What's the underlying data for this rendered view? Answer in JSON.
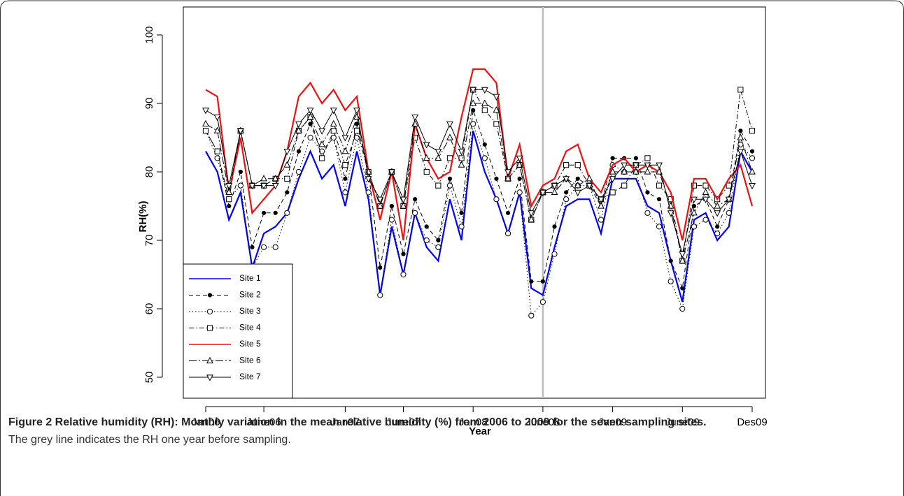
{
  "chart_data": {
    "type": "line",
    "ylabel": "RH(%)",
    "xlabel": "Year",
    "categories": [
      "Jan06",
      null,
      null,
      null,
      null,
      "June06",
      null,
      null,
      null,
      null,
      null,
      null,
      "Jan07",
      null,
      null,
      null,
      null,
      "June07",
      null,
      null,
      null,
      null,
      null,
      "Jan08",
      null,
      null,
      null,
      null,
      null,
      "June08",
      null,
      null,
      null,
      null,
      null,
      "Jan09",
      null,
      null,
      null,
      null,
      null,
      "June09",
      null,
      null,
      null,
      null,
      null,
      "Des09"
    ],
    "ylim": [
      50,
      100
    ],
    "yticks": [
      50,
      60,
      70,
      80,
      90,
      100
    ],
    "reference_line": {
      "x": 29,
      "color": "#bdbdbd"
    },
    "legend": "bottom-left",
    "series": [
      {
        "name": "Site 1",
        "color": "#0000ff",
        "width": 2.2,
        "dash": "solid",
        "marker": "none",
        "values": [
          83,
          80,
          73,
          77,
          66,
          71,
          72,
          74,
          79,
          83,
          79,
          81,
          75,
          83,
          76,
          62,
          72,
          65,
          74,
          69,
          67,
          76,
          70,
          86,
          80,
          76,
          71,
          77,
          63,
          62,
          69,
          75,
          76,
          76,
          71,
          79,
          79,
          79,
          75,
          74,
          67,
          61,
          73,
          74,
          70,
          72,
          83,
          80
        ]
      },
      {
        "name": "Site 2",
        "color": "#000000",
        "width": 1,
        "dash": "dashed",
        "marker": "dot",
        "values": [
          86,
          83,
          75,
          80,
          69,
          74,
          74,
          77,
          83,
          87,
          83,
          85,
          79,
          87,
          80,
          66,
          75,
          68,
          76,
          72,
          70,
          79,
          74,
          89,
          84,
          79,
          74,
          79,
          64,
          64,
          72,
          77,
          79,
          78,
          75,
          82,
          82,
          82,
          77,
          76,
          67,
          63,
          75,
          76,
          72,
          76,
          86,
          83
        ]
      },
      {
        "name": "Site 3",
        "color": "#000000",
        "width": 1,
        "dash": "dotted",
        "marker": "circle",
        "values": [
          86,
          82,
          76,
          78,
          66,
          69,
          69,
          74,
          80,
          85,
          83,
          85,
          77,
          85,
          77,
          62,
          73,
          65,
          74,
          70,
          69,
          78,
          72,
          87,
          82,
          76,
          71,
          77,
          59,
          61,
          68,
          76,
          78,
          78,
          73,
          81,
          80,
          80,
          74,
          72,
          64,
          60,
          72,
          73,
          71,
          74,
          84,
          82
        ]
      },
      {
        "name": "Site 4",
        "color": "#000000",
        "width": 1,
        "dash": "dashdot",
        "marker": "square",
        "values": [
          86,
          83,
          76,
          86,
          78,
          78,
          79,
          79,
          86,
          88,
          82,
          86,
          81,
          86,
          80,
          75,
          80,
          75,
          85,
          80,
          78,
          82,
          82,
          92,
          89,
          87,
          79,
          81,
          73,
          77,
          78,
          81,
          81,
          78,
          76,
          77,
          78,
          81,
          82,
          78,
          76,
          67,
          78,
          78,
          76,
          78,
          92,
          86
        ]
      },
      {
        "name": "Site 5",
        "color": "#ee1111",
        "width": 2.2,
        "dash": "solid",
        "marker": "none",
        "values": [
          92,
          91,
          77,
          85,
          74,
          76,
          78,
          83,
          91,
          93,
          90,
          92,
          89,
          91,
          80,
          73,
          80,
          70,
          87,
          82,
          79,
          80,
          88,
          95,
          95,
          93,
          79,
          84,
          75,
          78,
          79,
          83,
          84,
          79,
          77,
          81,
          82,
          80,
          81,
          80,
          77,
          70,
          79,
          79,
          76,
          79,
          81,
          75
        ]
      },
      {
        "name": "Site 6",
        "color": "#000000",
        "width": 1,
        "dash": "longdash",
        "marker": "triangle-up",
        "values": [
          87,
          86,
          77,
          86,
          78,
          79,
          79,
          81,
          86,
          88,
          84,
          87,
          83,
          88,
          80,
          75,
          80,
          75,
          87,
          82,
          82,
          85,
          81,
          90,
          90,
          89,
          79,
          81,
          73,
          77,
          77,
          79,
          78,
          79,
          75,
          80,
          80,
          80,
          80,
          80,
          75,
          67,
          74,
          77,
          75,
          76,
          85,
          80
        ]
      },
      {
        "name": "Site 7",
        "color": "#000000",
        "width": 1,
        "dash": "solid",
        "marker": "triangle-down",
        "values": [
          89,
          88,
          78,
          86,
          78,
          78,
          78,
          83,
          87,
          89,
          86,
          89,
          85,
          89,
          79,
          76,
          80,
          76,
          88,
          84,
          83,
          87,
          83,
          92,
          92,
          91,
          80,
          82,
          74,
          77,
          78,
          79,
          77,
          78,
          76,
          79,
          81,
          81,
          81,
          81,
          74,
          68,
          76,
          76,
          74,
          76,
          83,
          78
        ]
      }
    ],
    "caption_title": "Figure 2 Relative humidity (RH): Monthly variation in the mean relative humidity (%) from 2006 to 2009 for the seven sampling sites.",
    "caption_note": "The grey line indicates the RH one year before sampling."
  }
}
